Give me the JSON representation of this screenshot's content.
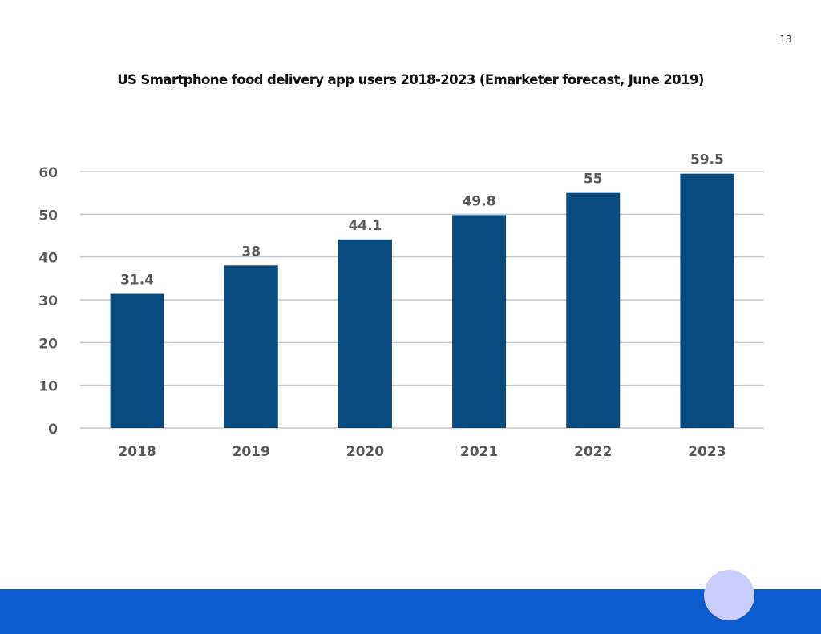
{
  "page_number": "13",
  "colors": {
    "bar": "#064a80",
    "grid": "#c8c8c8",
    "label_text": "#595959",
    "footer_band": "#0b5ccc",
    "footer_circle": "#c9cefc"
  },
  "chart_data": {
    "type": "bar",
    "title": "US Smartphone food delivery app users 2018-2023 (Emarketer forecast, June 2019)",
    "xlabel": "",
    "ylabel": "",
    "categories": [
      "2018",
      "2019",
      "2020",
      "2021",
      "2022",
      "2023"
    ],
    "values": [
      31.4,
      38,
      44.1,
      49.8,
      55,
      59.5
    ],
    "data_labels": [
      "31.4",
      "38",
      "44.1",
      "49.8",
      "55",
      "59.5"
    ],
    "ylim": [
      0,
      60
    ],
    "yticks": [
      0,
      10,
      20,
      30,
      40,
      50,
      60
    ],
    "ytick_labels": [
      "0",
      "10",
      "20",
      "30",
      "40",
      "50",
      "60"
    ],
    "grid": true,
    "legend": "none"
  }
}
